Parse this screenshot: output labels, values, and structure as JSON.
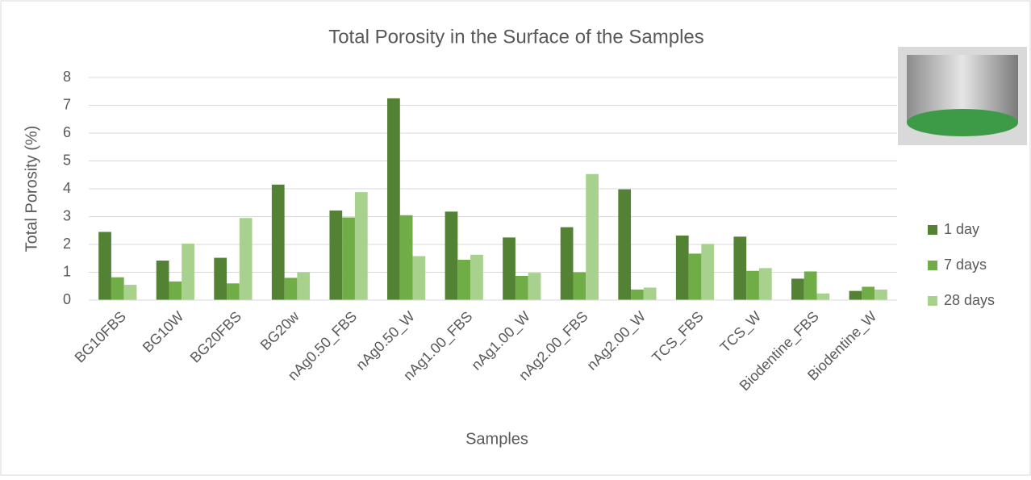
{
  "chart_data": {
    "type": "bar",
    "title": "Total Porosity in the Surface of the Samples",
    "x_label": "Samples",
    "y_label": "Total Porosity (%)",
    "categories": [
      "BG10FBS",
      "BG10W",
      "BG20FBS",
      "BG20w",
      "nAg0.50_FBS",
      "nAg0.50_W",
      "nAg1.00_FBS",
      "nAg1.00_W",
      "nAg2.00_FBS",
      "nAg2.00_W",
      "TCS_FBS",
      "TCS_W",
      "Biodentine_FBS",
      "Biodentine_W"
    ],
    "series": [
      {
        "name": "1 day",
        "color": "#548235",
        "values": [
          2.45,
          1.42,
          1.52,
          4.15,
          3.22,
          7.25,
          3.18,
          2.25,
          2.62,
          3.98,
          2.32,
          2.28,
          0.77,
          0.33
        ]
      },
      {
        "name": "7 days",
        "color": "#70ad47",
        "values": [
          0.82,
          0.67,
          0.6,
          0.8,
          2.97,
          3.05,
          1.45,
          0.87,
          1.0,
          0.38,
          1.67,
          1.05,
          1.03,
          0.48
        ]
      },
      {
        "name": "28 days",
        "color": "#a9d18e",
        "values": [
          0.55,
          2.03,
          2.95,
          1.0,
          3.88,
          1.58,
          1.63,
          0.98,
          4.53,
          0.45,
          2.02,
          1.15,
          0.24,
          0.38
        ]
      }
    ],
    "ylim": [
      0,
      8
    ],
    "yticks": [
      0,
      1,
      2,
      3,
      4,
      5,
      6,
      7,
      8
    ],
    "grid": true,
    "legend": "right"
  }
}
